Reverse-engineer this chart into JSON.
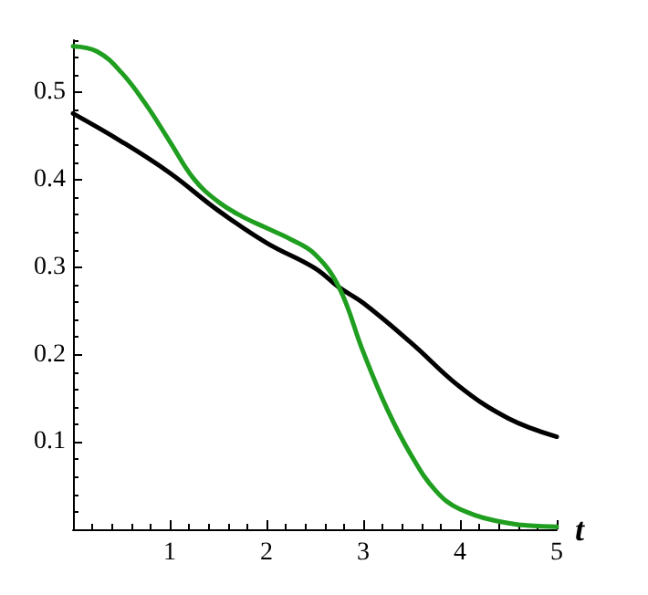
{
  "chart_data": {
    "type": "line",
    "xlabel": "t",
    "xlim": [
      0,
      5
    ],
    "xticks": [
      1,
      2,
      3,
      4,
      5
    ],
    "ylim": [
      0,
      0.56
    ],
    "yticks": [
      0.1,
      0.2,
      0.3,
      0.4,
      0.5
    ],
    "grid": false,
    "marker": "none",
    "line_style": "solid",
    "series": [
      {
        "color": "#000000",
        "x": [
          0,
          0.5,
          1,
          1.5,
          2,
          2.5,
          2.75,
          3,
          3.5,
          4,
          4.5,
          5
        ],
        "values": [
          0.476,
          0.444,
          0.408,
          0.365,
          0.328,
          0.299,
          0.277,
          0.259,
          0.213,
          0.163,
          0.127,
          0.106
        ]
      },
      {
        "color": "#1f9e1f",
        "x": [
          0,
          0.25,
          0.5,
          0.75,
          1,
          1.25,
          1.5,
          1.75,
          2,
          2.25,
          2.5,
          2.75,
          3,
          3.25,
          3.5,
          3.75,
          4,
          4.5,
          5
        ],
        "values": [
          0.553,
          0.547,
          0.523,
          0.487,
          0.444,
          0.401,
          0.375,
          0.358,
          0.345,
          0.332,
          0.315,
          0.277,
          0.203,
          0.137,
          0.084,
          0.044,
          0.023,
          0.007,
          0.003
        ]
      }
    ]
  }
}
